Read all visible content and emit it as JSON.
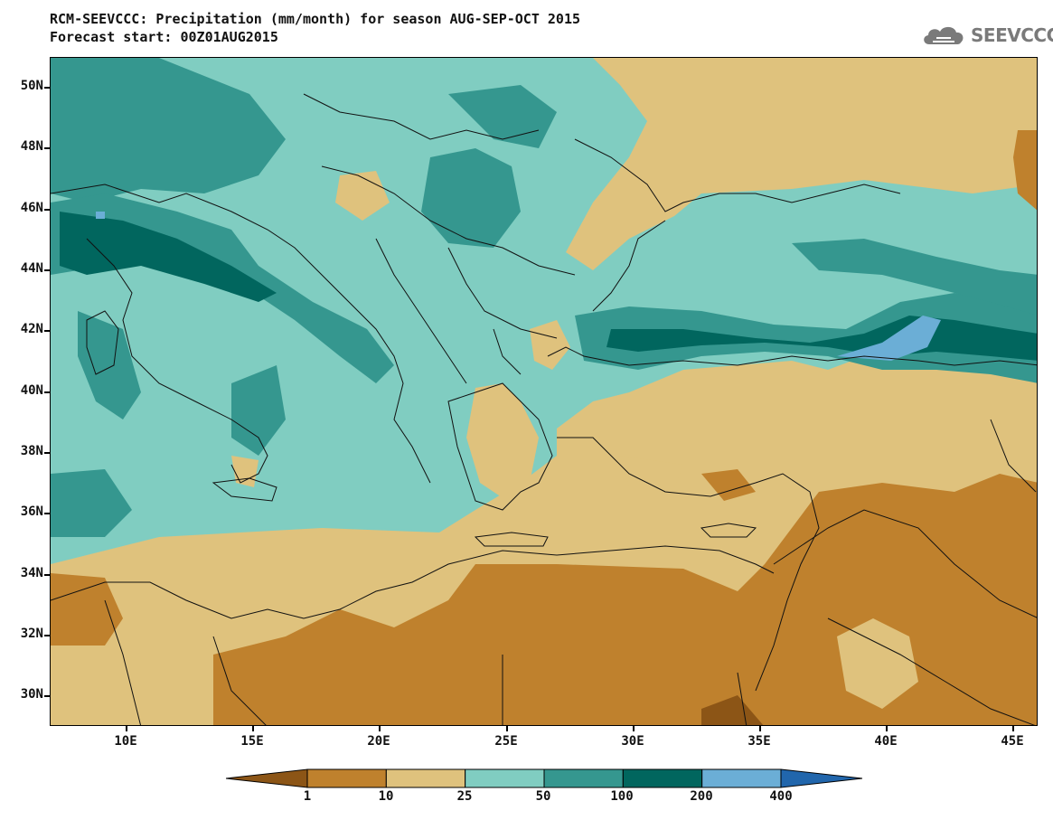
{
  "title": {
    "line1": "RCM-SEEVCCC: Precipitation (mm/month) for season AUG-SEP-OCT 2015",
    "line2": "Forecast start: 00Z01AUG2015"
  },
  "logo": {
    "text": "SEEVCCC",
    "icon": "cloud-icon",
    "color": "#7a7a7a"
  },
  "map": {
    "lat_labels": [
      "50N",
      "48N",
      "46N",
      "44N",
      "42N",
      "40N",
      "38N",
      "36N",
      "34N",
      "32N",
      "30N"
    ],
    "lon_labels": [
      "10E",
      "15E",
      "20E",
      "25E",
      "30E",
      "35E",
      "40E",
      "45E"
    ],
    "lon_range": [
      7,
      46
    ],
    "lat_range": [
      29,
      51
    ]
  },
  "legend": {
    "boundaries": [
      "1",
      "10",
      "25",
      "50",
      "100",
      "200",
      "400"
    ],
    "colors": [
      "#8c5516",
      "#bf812d",
      "#dfc27d",
      "#80cdc1",
      "#35978f",
      "#01665e",
      "#6baed6",
      "#2166ac"
    ]
  }
}
